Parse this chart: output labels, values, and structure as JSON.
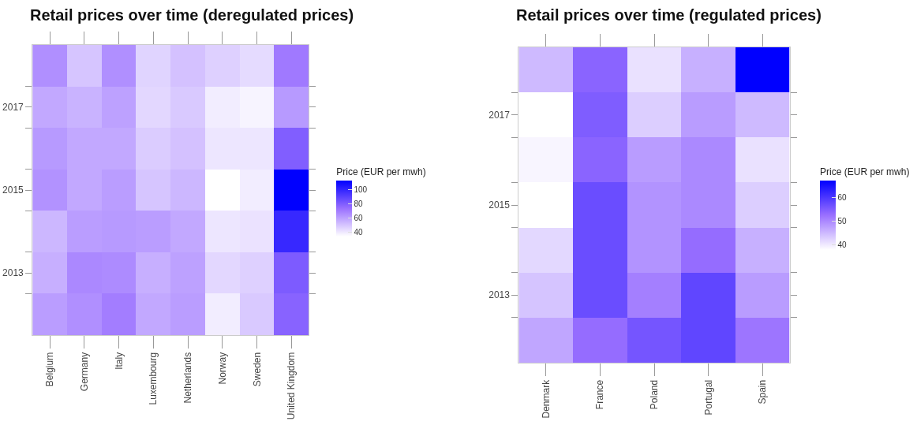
{
  "chart_data": [
    {
      "type": "heatmap",
      "title": "Retail prices over time (deregulated prices)",
      "clabel": "Price (EUR per mwh)",
      "categories": [
        "Belgium",
        "Germany",
        "Italy",
        "Luxembourg",
        "Netherlands",
        "Norway",
        "Sweden",
        "United Kingdom"
      ],
      "y_categories": [
        null,
        "2017",
        null,
        "2015",
        null,
        "2013",
        null
      ],
      "cells": [
        [
          65,
          50,
          65,
          46,
          51,
          47,
          44,
          71
        ],
        [
          58,
          55,
          60,
          45,
          49,
          39,
          37,
          62
        ],
        [
          62,
          58,
          58,
          48,
          51,
          41,
          41,
          80
        ],
        [
          64,
          58,
          61,
          50,
          54,
          34,
          39,
          113
        ],
        [
          54,
          61,
          62,
          61,
          58,
          41,
          42,
          99
        ],
        [
          56,
          67,
          66,
          56,
          60,
          45,
          47,
          81
        ],
        [
          61,
          65,
          70,
          58,
          61,
          39,
          49,
          78
        ]
      ],
      "clim": [
        34,
        113
      ],
      "cticks": [
        40,
        60,
        80,
        100
      ]
    },
    {
      "type": "heatmap",
      "title": "Retail prices over time (regulated prices)",
      "clabel": "Price (EUR per mwh)",
      "categories": [
        "Denmark",
        "France",
        "Poland",
        "Portugal",
        "Spain"
      ],
      "y_categories": [
        null,
        "2017",
        null,
        "2015",
        null,
        "2013",
        null
      ],
      "cells": [
        [
          45,
          54,
          41,
          46,
          67
        ],
        [
          38,
          55,
          43,
          48,
          45
        ],
        [
          39,
          54,
          48,
          50,
          41
        ],
        [
          38,
          57,
          49,
          50,
          43
        ],
        [
          42,
          57,
          49,
          53,
          46
        ],
        [
          44,
          57,
          51,
          58,
          48
        ],
        [
          47,
          53,
          56,
          58,
          52
        ]
      ],
      "clim": [
        38,
        67
      ],
      "cticks": [
        40,
        50,
        60
      ]
    }
  ]
}
